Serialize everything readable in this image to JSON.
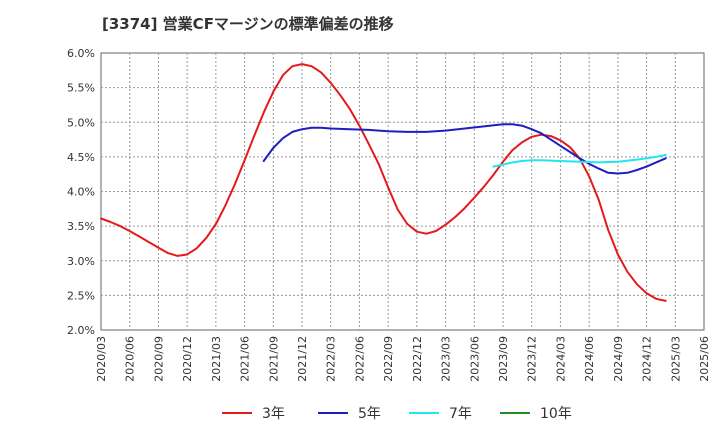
{
  "chart_data": {
    "type": "line",
    "title": "[3374]  営業CFマージンの標準偏差の推移",
    "xlabel": "",
    "ylabel": "",
    "ylim": [
      2.0,
      6.0
    ],
    "yticks": [
      "2.0%",
      "2.5%",
      "3.0%",
      "3.5%",
      "4.0%",
      "4.5%",
      "5.0%",
      "5.5%",
      "6.0%"
    ],
    "xticks": [
      "2020/03",
      "2020/06",
      "2020/09",
      "2020/12",
      "2021/03",
      "2021/06",
      "2021/09",
      "2021/12",
      "2022/03",
      "2022/06",
      "2022/09",
      "2022/12",
      "2023/03",
      "2023/06",
      "2023/09",
      "2023/12",
      "2024/03",
      "2024/06",
      "2024/09",
      "2024/12",
      "2025/03",
      "2025/06"
    ],
    "grid": true,
    "legend_position": "bottom",
    "series": [
      {
        "name": "3年",
        "color": "#e31a1c",
        "points": [
          [
            "2020/03",
            3.61
          ],
          [
            "2020/04",
            3.56
          ],
          [
            "2020/05",
            3.5
          ],
          [
            "2020/06",
            3.43
          ],
          [
            "2020/07",
            3.35
          ],
          [
            "2020/08",
            3.27
          ],
          [
            "2020/09",
            3.19
          ],
          [
            "2020/10",
            3.11
          ],
          [
            "2020/11",
            3.07
          ],
          [
            "2020/12",
            3.09
          ],
          [
            "2021/01",
            3.18
          ],
          [
            "2021/02",
            3.33
          ],
          [
            "2021/03",
            3.53
          ],
          [
            "2021/04",
            3.8
          ],
          [
            "2021/05",
            4.11
          ],
          [
            "2021/06",
            4.45
          ],
          [
            "2021/07",
            4.8
          ],
          [
            "2021/08",
            5.14
          ],
          [
            "2021/09",
            5.44
          ],
          [
            "2021/10",
            5.68
          ],
          [
            "2021/11",
            5.81
          ],
          [
            "2021/12",
            5.84
          ],
          [
            "2022/01",
            5.81
          ],
          [
            "2022/02",
            5.72
          ],
          [
            "2022/03",
            5.57
          ],
          [
            "2022/04",
            5.39
          ],
          [
            "2022/05",
            5.19
          ],
          [
            "2022/06",
            4.95
          ],
          [
            "2022/07",
            4.68
          ],
          [
            "2022/08",
            4.4
          ],
          [
            "2022/09",
            4.06
          ],
          [
            "2022/10",
            3.74
          ],
          [
            "2022/11",
            3.53
          ],
          [
            "2022/12",
            3.42
          ],
          [
            "2023/01",
            3.39
          ],
          [
            "2023/02",
            3.43
          ],
          [
            "2023/03",
            3.52
          ],
          [
            "2023/04",
            3.63
          ],
          [
            "2023/05",
            3.76
          ],
          [
            "2023/06",
            3.91
          ],
          [
            "2023/07",
            4.07
          ],
          [
            "2023/08",
            4.24
          ],
          [
            "2023/09",
            4.43
          ],
          [
            "2023/10",
            4.6
          ],
          [
            "2023/11",
            4.71
          ],
          [
            "2023/12",
            4.79
          ],
          [
            "2024/01",
            4.82
          ],
          [
            "2024/02",
            4.8
          ],
          [
            "2024/03",
            4.74
          ],
          [
            "2024/04",
            4.64
          ],
          [
            "2024/05",
            4.48
          ],
          [
            "2024/06",
            4.22
          ],
          [
            "2024/07",
            3.88
          ],
          [
            "2024/08",
            3.44
          ],
          [
            "2024/09",
            3.09
          ],
          [
            "2024/10",
            2.84
          ],
          [
            "2024/11",
            2.66
          ],
          [
            "2024/12",
            2.53
          ],
          [
            "2025/01",
            2.45
          ],
          [
            "2025/02",
            2.42
          ]
        ]
      },
      {
        "name": "5年",
        "color": "#1f1fbf",
        "points": [
          [
            "2021/08",
            4.44
          ],
          [
            "2021/09",
            4.63
          ],
          [
            "2021/10",
            4.77
          ],
          [
            "2021/11",
            4.86
          ],
          [
            "2021/12",
            4.9
          ],
          [
            "2022/01",
            4.92
          ],
          [
            "2022/02",
            4.92
          ],
          [
            "2022/03",
            4.91
          ],
          [
            "2022/05",
            4.9
          ],
          [
            "2022/07",
            4.89
          ],
          [
            "2022/09",
            4.87
          ],
          [
            "2022/11",
            4.86
          ],
          [
            "2023/01",
            4.86
          ],
          [
            "2023/03",
            4.88
          ],
          [
            "2023/05",
            4.91
          ],
          [
            "2023/07",
            4.94
          ],
          [
            "2023/09",
            4.97
          ],
          [
            "2023/10",
            4.97
          ],
          [
            "2023/11",
            4.95
          ],
          [
            "2023/12",
            4.9
          ],
          [
            "2024/01",
            4.84
          ],
          [
            "2024/02",
            4.75
          ],
          [
            "2024/03",
            4.66
          ],
          [
            "2024/04",
            4.57
          ],
          [
            "2024/05",
            4.48
          ],
          [
            "2024/06",
            4.4
          ],
          [
            "2024/07",
            4.33
          ],
          [
            "2024/08",
            4.27
          ],
          [
            "2024/09",
            4.26
          ],
          [
            "2024/10",
            4.27
          ],
          [
            "2024/11",
            4.31
          ],
          [
            "2024/12",
            4.36
          ],
          [
            "2025/01",
            4.42
          ],
          [
            "2025/02",
            4.48
          ]
        ]
      },
      {
        "name": "7年",
        "color": "#22e5f0",
        "points": [
          [
            "2023/08",
            4.36
          ],
          [
            "2023/09",
            4.39
          ],
          [
            "2023/10",
            4.42
          ],
          [
            "2023/11",
            4.44
          ],
          [
            "2023/12",
            4.45
          ],
          [
            "2024/01",
            4.45
          ],
          [
            "2024/03",
            4.44
          ],
          [
            "2024/05",
            4.43
          ],
          [
            "2024/07",
            4.42
          ],
          [
            "2024/09",
            4.43
          ],
          [
            "2024/11",
            4.46
          ],
          [
            "2025/01",
            4.5
          ],
          [
            "2025/02",
            4.53
          ]
        ]
      },
      {
        "name": "10年",
        "color": "#228b22",
        "points": []
      }
    ]
  }
}
